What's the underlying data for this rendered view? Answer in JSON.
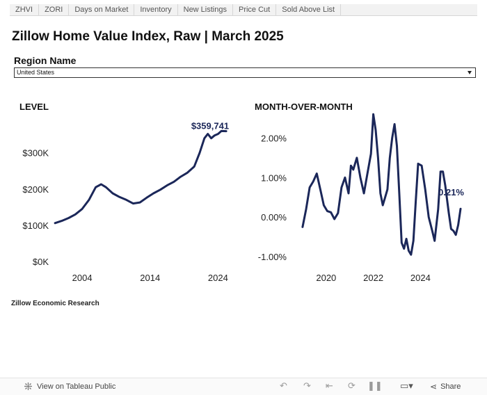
{
  "tabs": [
    {
      "label": "ZHVI",
      "active": true
    },
    {
      "label": "ZORI",
      "active": false
    },
    {
      "label": "Days on Market",
      "active": false
    },
    {
      "label": "Inventory",
      "active": false
    },
    {
      "label": "New Listings",
      "active": false
    },
    {
      "label": "Price Cut",
      "active": false
    },
    {
      "label": "Sold Above List",
      "active": false
    }
  ],
  "title": "Zillow Home Value Index, Raw | March 2025",
  "region": {
    "label": "Region Name",
    "value": "United States"
  },
  "footer_note": "Zillow Economic Research",
  "toolbar": {
    "view_label": "View on Tableau Public",
    "share_label": "Share",
    "icons": [
      "tableau-logo-icon",
      "undo-icon",
      "redo-icon",
      "revert-icon",
      "refresh-icon",
      "pause-icon",
      "download-icon",
      "share-icon"
    ]
  },
  "chart_data": [
    {
      "type": "line",
      "title": "LEVEL",
      "line_color": "#1b2759",
      "xlim": [
        1996,
        2025.5
      ],
      "ylim": [
        0,
        380000
      ],
      "y_ticks": [
        {
          "v": 0,
          "label": "$0K"
        },
        {
          "v": 100000,
          "label": "$100K"
        },
        {
          "v": 200000,
          "label": "$200K"
        },
        {
          "v": 300000,
          "label": "$300K"
        }
      ],
      "x_ticks": [
        {
          "v": 2004,
          "label": "2004"
        },
        {
          "v": 2014,
          "label": "2014"
        },
        {
          "v": 2024,
          "label": "2024"
        }
      ],
      "end_label": "$359,741",
      "points": [
        [
          2000,
          106000
        ],
        [
          2001,
          112000
        ],
        [
          2002,
          120000
        ],
        [
          2003,
          130000
        ],
        [
          2004,
          145000
        ],
        [
          2005,
          170000
        ],
        [
          2006,
          205000
        ],
        [
          2006.8,
          213000
        ],
        [
          2007.5,
          205000
        ],
        [
          2008.5,
          188000
        ],
        [
          2009.5,
          178000
        ],
        [
          2010.5,
          170000
        ],
        [
          2011.5,
          160000
        ],
        [
          2012.5,
          163000
        ],
        [
          2013.5,
          176000
        ],
        [
          2014.5,
          188000
        ],
        [
          2015.5,
          198000
        ],
        [
          2016.5,
          210000
        ],
        [
          2017.5,
          220000
        ],
        [
          2018.5,
          234000
        ],
        [
          2019.5,
          245000
        ],
        [
          2020.5,
          262000
        ],
        [
          2021.3,
          300000
        ],
        [
          2022.0,
          340000
        ],
        [
          2022.5,
          352000
        ],
        [
          2023.0,
          340000
        ],
        [
          2023.5,
          348000
        ],
        [
          2024.0,
          352000
        ],
        [
          2024.5,
          360000
        ],
        [
          2025.2,
          359741
        ]
      ]
    },
    {
      "type": "line",
      "title": "MONTH-OVER-MONTH",
      "line_color": "#1b2759",
      "xlim": [
        2018.5,
        2025.7
      ],
      "ylim": [
        -1.0,
        2.5
      ],
      "y_ticks": [
        {
          "v": -1,
          "label": "-1.00%"
        },
        {
          "v": 0,
          "label": "0.00%"
        },
        {
          "v": 1,
          "label": "1.00%"
        },
        {
          "v": 2,
          "label": "2.00%"
        }
      ],
      "x_ticks": [
        {
          "v": 2020,
          "label": "2020"
        },
        {
          "v": 2022,
          "label": "2022"
        },
        {
          "v": 2024,
          "label": "2024"
        }
      ],
      "end_label": "0.21%",
      "points": [
        [
          2019.0,
          -0.25
        ],
        [
          2019.15,
          0.2
        ],
        [
          2019.3,
          0.75
        ],
        [
          2019.45,
          0.9
        ],
        [
          2019.6,
          1.1
        ],
        [
          2019.75,
          0.7
        ],
        [
          2019.9,
          0.3
        ],
        [
          2020.05,
          0.15
        ],
        [
          2020.2,
          0.12
        ],
        [
          2020.35,
          -0.05
        ],
        [
          2020.5,
          0.1
        ],
        [
          2020.65,
          0.75
        ],
        [
          2020.8,
          1.0
        ],
        [
          2020.95,
          0.6
        ],
        [
          2021.05,
          1.3
        ],
        [
          2021.15,
          1.2
        ],
        [
          2021.3,
          1.5
        ],
        [
          2021.45,
          1.0
        ],
        [
          2021.6,
          0.6
        ],
        [
          2021.75,
          1.1
        ],
        [
          2021.9,
          1.6
        ],
        [
          2022.0,
          2.6
        ],
        [
          2022.1,
          2.2
        ],
        [
          2022.2,
          1.5
        ],
        [
          2022.3,
          0.6
        ],
        [
          2022.4,
          0.3
        ],
        [
          2022.5,
          0.5
        ],
        [
          2022.6,
          0.7
        ],
        [
          2022.7,
          1.5
        ],
        [
          2022.8,
          2.0
        ],
        [
          2022.9,
          2.35
        ],
        [
          2023.0,
          1.8
        ],
        [
          2023.1,
          0.6
        ],
        [
          2023.2,
          -0.65
        ],
        [
          2023.3,
          -0.8
        ],
        [
          2023.4,
          -0.55
        ],
        [
          2023.5,
          -0.85
        ],
        [
          2023.6,
          -0.95
        ],
        [
          2023.7,
          -0.6
        ],
        [
          2023.8,
          0.4
        ],
        [
          2023.9,
          1.35
        ],
        [
          2024.05,
          1.3
        ],
        [
          2024.2,
          0.7
        ],
        [
          2024.35,
          0.0
        ],
        [
          2024.5,
          -0.35
        ],
        [
          2024.6,
          -0.6
        ],
        [
          2024.75,
          0.2
        ],
        [
          2024.85,
          1.15
        ],
        [
          2024.95,
          1.15
        ],
        [
          2025.05,
          0.8
        ],
        [
          2025.2,
          0.1
        ],
        [
          2025.3,
          -0.3
        ],
        [
          2025.4,
          -0.35
        ],
        [
          2025.5,
          -0.45
        ],
        [
          2025.6,
          -0.2
        ],
        [
          2025.7,
          0.21
        ]
      ]
    }
  ]
}
